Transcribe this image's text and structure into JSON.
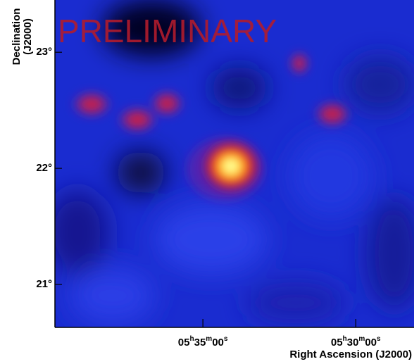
{
  "chart_data": {
    "type": "image",
    "title": "PRELIMINARY",
    "xlabel": "Right Ascension (J2000)",
    "ylabel": [
      "Declination",
      "(J2000)"
    ],
    "xlim": [
      5.664,
      5.4682
    ],
    "ylim": [
      20.63,
      23.45
    ],
    "xticks": [
      {
        "value": 5.58333,
        "label": "05h35m00s"
      },
      {
        "value": 5.5,
        "label": "05h30m00s"
      }
    ],
    "yticks": [
      {
        "value": 21,
        "label": "21°"
      },
      {
        "value": 22,
        "label": "22°"
      },
      {
        "value": 23,
        "label": "23°"
      }
    ]
  }
}
